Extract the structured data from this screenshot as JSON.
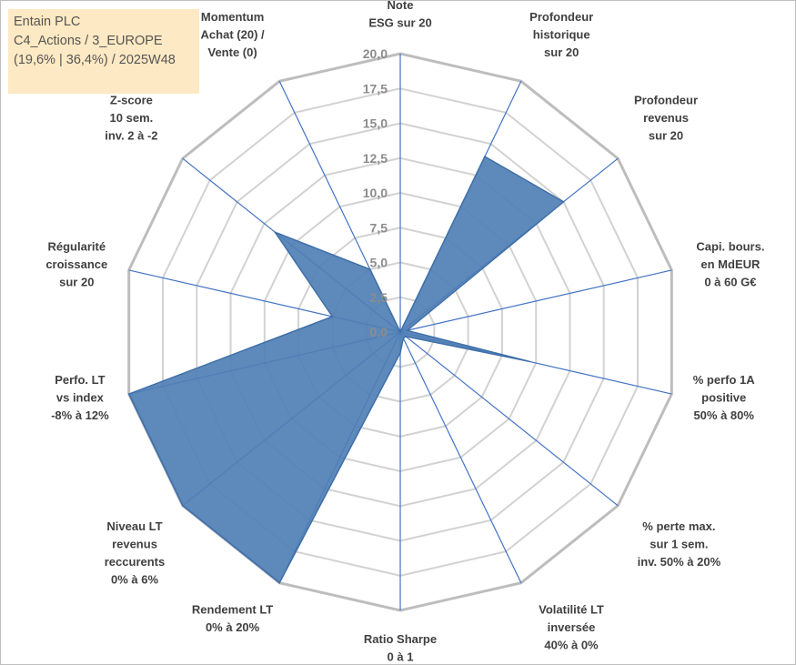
{
  "title_box": {
    "line1": "Entain PLC",
    "line2": "C4_Actions / 3_EUROPE",
    "line3": "(19,6% | 36,4%) / 2025W48"
  },
  "colors": {
    "area_fill": "#4f7fb5",
    "area_stroke": "#3f6fa8",
    "spoke": "#4472c4",
    "ring": "#c8c8c8",
    "title_bg": "#fde9c3"
  },
  "chart_data": {
    "type": "radar",
    "title": "Entain PLC",
    "range": [
      0,
      20
    ],
    "ticks": [
      "0,0",
      "2,5",
      "5,0",
      "7,5",
      "10,0",
      "12,5",
      "15,0",
      "17,5",
      "20,0"
    ],
    "tick_values": [
      0,
      2.5,
      5,
      7.5,
      10,
      12.5,
      15,
      17.5,
      20
    ],
    "axes": [
      {
        "label": [
          "Note",
          "ESG sur 20"
        ],
        "value": 0
      },
      {
        "label": [
          "Profondeur",
          "historique",
          "sur 20"
        ],
        "value": 14
      },
      {
        "label": [
          "Profondeur",
          "revenus",
          "sur 20"
        ],
        "value": 15
      },
      {
        "label": [
          "Capi. bours.",
          "en MdEUR",
          "0 à 60 G€"
        ],
        "value": 0.5
      },
      {
        "label": [
          "% perfo 1A",
          "positive",
          "50% à 80%"
        ],
        "value": 9.5
      },
      {
        "label": [
          "% perte max.",
          "sur 1 sem.",
          "inv. 50% à 20%"
        ],
        "value": 0.5
      },
      {
        "label": [
          "Volatilité LT",
          "inversée",
          "40% à 0%"
        ],
        "value": 0.5
      },
      {
        "label": [
          "Ratio Sharpe",
          "0 à 1"
        ],
        "value": 1.5
      },
      {
        "label": [
          "Rendement LT",
          "0% à 20%"
        ],
        "value": 20
      },
      {
        "label": [
          "Niveau LT",
          "revenus",
          "reccurents",
          "0% à 6%"
        ],
        "value": 20
      },
      {
        "label": [
          "Perfo. LT",
          "vs index",
          "-8% à 12%"
        ],
        "value": 20
      },
      {
        "label": [
          "Régularité",
          "croissance",
          "sur 20"
        ],
        "value": 5
      },
      {
        "label": [
          "Z-score",
          "10 sem.",
          "inv. 2 à -2"
        ],
        "value": 11.5
      },
      {
        "label": [
          "Momentum",
          "Achat (20) /",
          "Vente (0)"
        ],
        "value": 5
      }
    ]
  }
}
